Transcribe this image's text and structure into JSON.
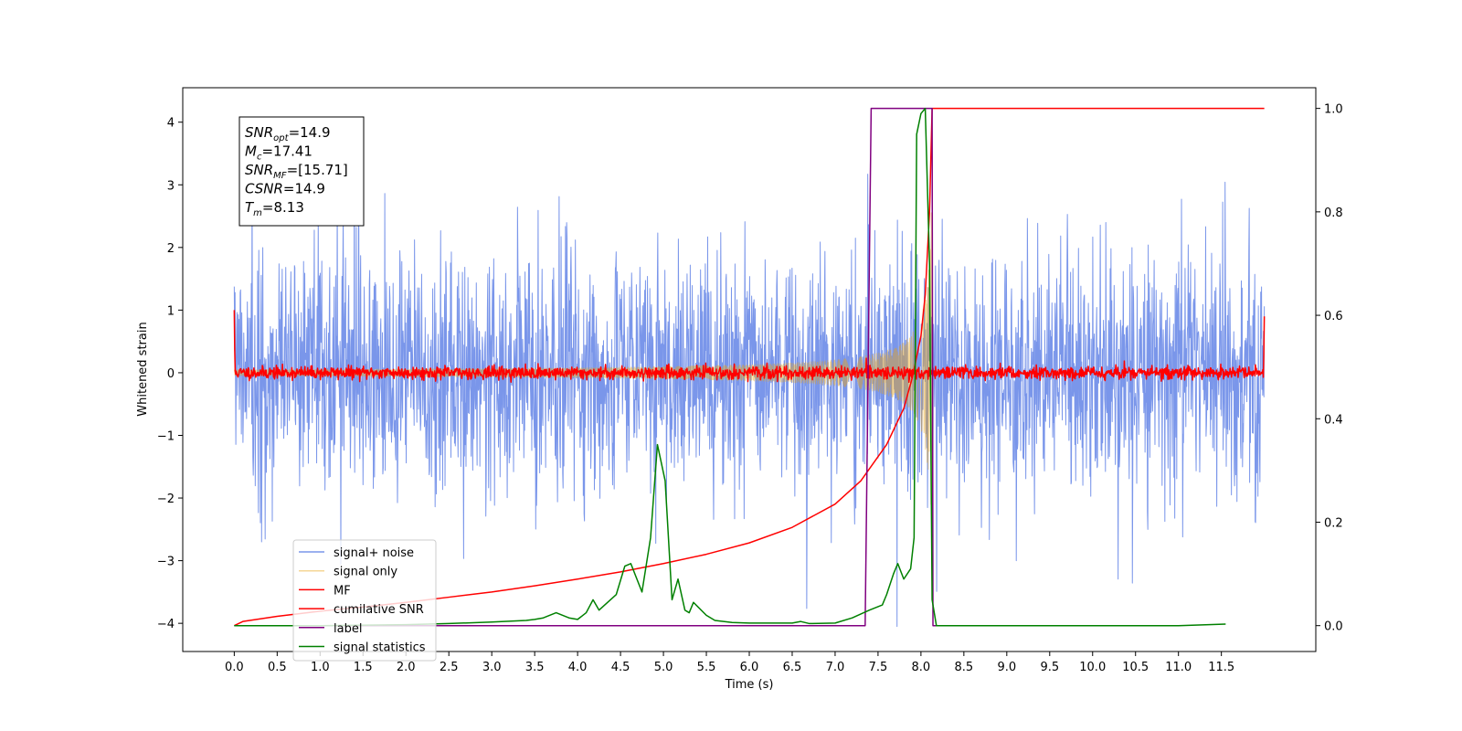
{
  "chart_data": {
    "type": "line",
    "xlabel": "Time (s)",
    "ylabel_left": "Whitened strain",
    "ylabel_right": "",
    "xlim": [
      -0.6,
      12.6
    ],
    "ylim_left": [
      -4.45,
      4.55
    ],
    "ylim_right": [
      -0.05,
      1.04
    ],
    "x_ticks": [
      "0.0",
      "0.5",
      "1.0",
      "1.5",
      "2.0",
      "2.5",
      "3.0",
      "3.5",
      "4.0",
      "4.5",
      "5.0",
      "5.5",
      "6.0",
      "6.5",
      "7.0",
      "7.5",
      "8.0",
      "8.5",
      "9.0",
      "9.5",
      "10.0",
      "10.5",
      "11.0",
      "11.5"
    ],
    "y_ticks_left": [
      "4",
      "3",
      "2",
      "1",
      "0",
      "−1",
      "−2",
      "−3",
      "−4"
    ],
    "y_ticks_right": [
      "1.0",
      "0.8",
      "0.6",
      "0.4",
      "0.2",
      "0.0"
    ],
    "grid": false,
    "legend_position": "lower-left",
    "annotation": {
      "lines": [
        {
          "base": "SNR",
          "sub": "opt",
          "rest": "=14.9"
        },
        {
          "base": "M",
          "sub": "c",
          "rest": "=17.41"
        },
        {
          "base": "SNR",
          "sub": "MF",
          "rest": "=[15.71]"
        },
        {
          "base": "CSNR",
          "sub": "",
          "rest": "=14.9"
        },
        {
          "base": "T",
          "sub": "m",
          "rest": "=8.13"
        }
      ]
    },
    "series": [
      {
        "name": "signal+ noise",
        "axis": "left",
        "color": "#4169e1",
        "opacity": 0.7,
        "kind": "noise",
        "x_range": [
          0.0,
          12.0
        ],
        "std": 0.95,
        "seed": 7
      },
      {
        "name": "signal only",
        "axis": "left",
        "color": "#e8a317",
        "opacity": 0.45,
        "kind": "chirp",
        "x_range": [
          0.0,
          8.13
        ],
        "peak_time": 8.13,
        "peak_amplitude": 3.2
      },
      {
        "name": "MF",
        "axis": "left",
        "color": "#ff0000",
        "kind": "mf",
        "x_range": [
          0.0,
          12.0
        ],
        "edge_values": [
          1.0,
          0.9
        ],
        "std": 0.05,
        "seed": 11
      },
      {
        "name": "cumilative SNR",
        "axis": "right",
        "color": "#ff0000",
        "x": [
          0.0,
          0.1,
          0.5,
          1.0,
          1.5,
          2.0,
          2.5,
          3.0,
          3.5,
          4.0,
          4.5,
          5.0,
          5.5,
          6.0,
          6.5,
          7.0,
          7.3,
          7.6,
          7.8,
          7.9,
          8.0,
          8.05,
          8.1,
          8.13,
          8.5,
          9.0,
          10.0,
          11.0,
          12.0
        ],
        "y": [
          0.0,
          0.008,
          0.018,
          0.028,
          0.036,
          0.045,
          0.055,
          0.065,
          0.077,
          0.09,
          0.104,
          0.12,
          0.138,
          0.16,
          0.19,
          0.235,
          0.28,
          0.35,
          0.42,
          0.48,
          0.56,
          0.64,
          0.8,
          1.0,
          1.0,
          1.0,
          1.0,
          1.0,
          1.0
        ]
      },
      {
        "name": "label",
        "axis": "right",
        "color": "#800080",
        "x": [
          0.0,
          7.35,
          7.42,
          8.13,
          8.14,
          11.0
        ],
        "y": [
          0.0,
          0.0,
          1.0,
          1.0,
          0.0,
          0.0
        ]
      },
      {
        "name": "signal statistics",
        "axis": "right",
        "color": "#008000",
        "x": [
          0.0,
          1.0,
          2.0,
          2.5,
          3.0,
          3.4,
          3.5,
          3.6,
          3.75,
          3.9,
          4.0,
          4.1,
          4.18,
          4.25,
          4.35,
          4.45,
          4.55,
          4.62,
          4.75,
          4.85,
          4.93,
          5.02,
          5.1,
          5.17,
          5.25,
          5.3,
          5.35,
          5.5,
          5.6,
          5.8,
          6.0,
          6.5,
          6.6,
          6.7,
          7.0,
          7.2,
          7.4,
          7.55,
          7.6,
          7.68,
          7.73,
          7.8,
          7.88,
          7.92,
          7.95,
          8.0,
          8.05,
          8.1,
          8.13,
          8.18,
          9.0,
          10.0,
          11.0,
          11.55
        ],
        "y": [
          0.0,
          0.0,
          0.002,
          0.004,
          0.007,
          0.01,
          0.012,
          0.015,
          0.025,
          0.015,
          0.012,
          0.025,
          0.05,
          0.03,
          0.045,
          0.06,
          0.115,
          0.12,
          0.065,
          0.17,
          0.35,
          0.28,
          0.05,
          0.09,
          0.03,
          0.025,
          0.045,
          0.02,
          0.01,
          0.006,
          0.005,
          0.005,
          0.008,
          0.004,
          0.005,
          0.015,
          0.03,
          0.04,
          0.06,
          0.1,
          0.12,
          0.09,
          0.11,
          0.17,
          0.95,
          0.99,
          1.0,
          0.7,
          0.05,
          0.0,
          0.0,
          0.0,
          0.0,
          0.003
        ]
      }
    ]
  }
}
